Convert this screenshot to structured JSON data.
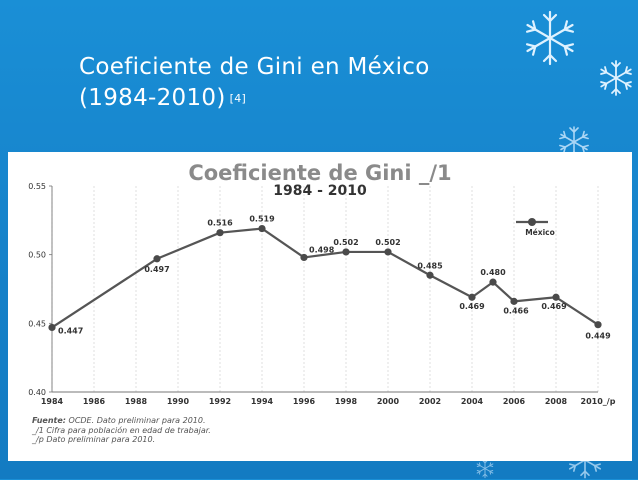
{
  "slide": {
    "title_line1": "Coeficiente de Gini en México",
    "title_line2": "(1984-2010)",
    "reference": "[4]"
  },
  "chart_data": {
    "type": "line",
    "title": "Coeficiente de Gini _/1",
    "subtitle": "1984 - 2010",
    "x": [
      "1984",
      "1989",
      "1992",
      "1994",
      "1996",
      "1998",
      "2000",
      "2002",
      "2004",
      "2005",
      "2006",
      "2008",
      "2010_/p"
    ],
    "x_numeric": [
      1984,
      1989,
      1992,
      1994,
      1996,
      1998,
      2000,
      2002,
      2004,
      2005,
      2006,
      2008,
      2010
    ],
    "series": [
      {
        "name": "México",
        "values": [
          0.447,
          0.497,
          0.516,
          0.519,
          0.498,
          0.502,
          0.502,
          0.485,
          0.469,
          0.48,
          0.466,
          0.469,
          0.449
        ],
        "labels": [
          "0.447",
          "0.497",
          "0.516",
          "0.519",
          "0.498",
          "0.502",
          "0.502",
          "0.485",
          "0.469",
          "0.480",
          "0.466",
          "0.469",
          "0.449"
        ]
      }
    ],
    "x_ticks": [
      "1984",
      "1986",
      "1988",
      "1990",
      "1992",
      "1994",
      "1996",
      "1998",
      "2000",
      "2002",
      "2004",
      "2006",
      "2008",
      "2010_/p"
    ],
    "x_ticks_numeric": [
      1984,
      1986,
      1988,
      1990,
      1992,
      1994,
      1996,
      1998,
      2000,
      2002,
      2004,
      2006,
      2008,
      2010
    ],
    "y_ticks": [
      "0.40",
      "0.45",
      "0.50",
      "0.55"
    ],
    "xlim": [
      1984,
      2010
    ],
    "ylim": [
      0.4,
      0.55
    ],
    "grid": "vertical",
    "legend_position": "top-right",
    "line_color": "#555555",
    "marker_color": "#4a4a4a"
  },
  "footnotes": {
    "source_label": "Fuente:",
    "source_text": "OCDE. Dato preliminar para 2010.",
    "note1": "_/1 Cifra para población en edad de trabajar.",
    "note2": "_/p Dato preliminar para 2010."
  }
}
